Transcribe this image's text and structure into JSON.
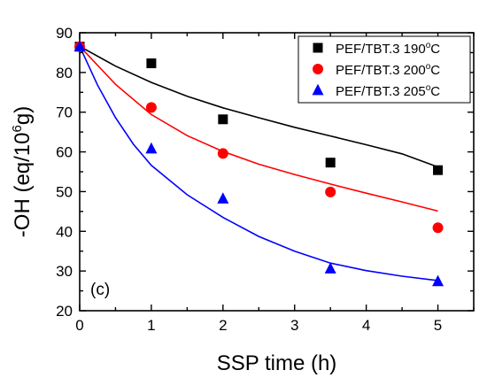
{
  "chart_data": {
    "type": "scatter",
    "panel_label": "(c)",
    "xlabel": "SSP time (h)",
    "ylabel": "-OH (eq/10",
    "ylabel_sup": "6",
    "ylabel_end": "g)",
    "xlim": [
      0,
      5.5
    ],
    "ylim": [
      20,
      90
    ],
    "xticks": [
      0,
      1,
      2,
      3,
      4,
      5
    ],
    "yticks": [
      20,
      30,
      40,
      50,
      60,
      70,
      80,
      90
    ],
    "legend_position": "top-right",
    "series": [
      {
        "name": "PEF/TBT.3 190",
        "name_sup": "o",
        "name_end": "C",
        "marker": "square",
        "color": "#000000",
        "x": [
          0,
          1,
          2,
          3.5,
          5
        ],
        "y": [
          86.5,
          82.3,
          68.2,
          57.3,
          55.4
        ],
        "fit": [
          [
            0,
            86.6
          ],
          [
            0.5,
            81.6
          ],
          [
            1,
            77.5
          ],
          [
            1.5,
            74.0
          ],
          [
            2,
            71.1
          ],
          [
            2.5,
            68.6
          ],
          [
            3,
            66.2
          ],
          [
            3.5,
            64.0
          ],
          [
            4,
            61.8
          ],
          [
            4.5,
            59.5
          ],
          [
            5,
            56.2
          ]
        ]
      },
      {
        "name": "PEF/TBT.3 200",
        "name_sup": "o",
        "name_end": "C",
        "marker": "circle",
        "color": "#ff0000",
        "x": [
          0,
          1,
          2,
          3.5,
          5
        ],
        "y": [
          86.5,
          71.2,
          59.6,
          49.9,
          40.9
        ],
        "fit": [
          [
            0,
            86.6
          ],
          [
            0.5,
            77.0
          ],
          [
            1,
            69.4
          ],
          [
            1.5,
            64.1
          ],
          [
            2,
            60.1
          ],
          [
            2.5,
            56.9
          ],
          [
            3,
            54.3
          ],
          [
            3.5,
            51.9
          ],
          [
            4,
            49.6
          ],
          [
            4.5,
            47.4
          ],
          [
            5,
            45.1
          ]
        ]
      },
      {
        "name": "PEF/TBT.3 205",
        "name_sup": "o",
        "name_end": "C",
        "marker": "triangle",
        "color": "#0000ff",
        "x": [
          0,
          1,
          2,
          3.5,
          5
        ],
        "y": [
          86.5,
          60.8,
          48.2,
          30.6,
          27.4
        ],
        "fit": [
          [
            0,
            86.6
          ],
          [
            0.25,
            76.8
          ],
          [
            0.5,
            68.6
          ],
          [
            0.75,
            61.9
          ],
          [
            1,
            56.6
          ],
          [
            1.5,
            49.2
          ],
          [
            2,
            43.5
          ],
          [
            2.5,
            38.7
          ],
          [
            3,
            35.0
          ],
          [
            3.5,
            32.0
          ],
          [
            4,
            30.1
          ],
          [
            4.5,
            28.7
          ],
          [
            5,
            27.6
          ]
        ]
      }
    ]
  }
}
